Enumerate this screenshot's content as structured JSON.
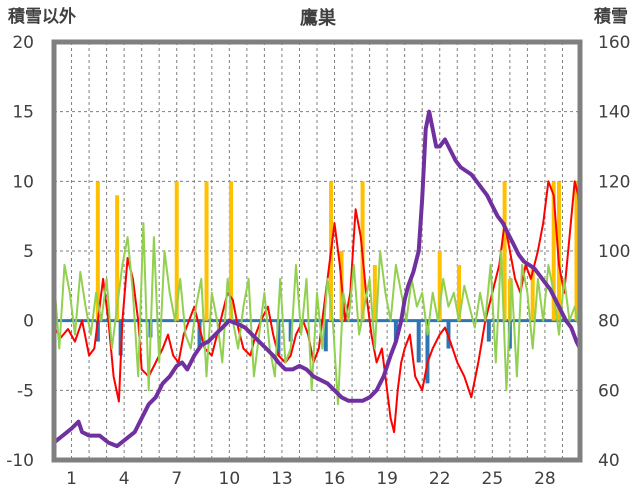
{
  "chart_data": {
    "type": "line",
    "title": "鷹巣",
    "ylabel_left": "積雪以外",
    "ylabel_right": "積雪",
    "ylim_left": [
      -10,
      20
    ],
    "ylim_right": [
      40,
      160
    ],
    "yticks_left": [
      "20",
      "15",
      "10",
      "5",
      "0",
      "-5",
      "-10"
    ],
    "yticks_right": [
      "160",
      "140",
      "120",
      "100",
      "80",
      "60",
      "40"
    ],
    "xlim": [
      0,
      30
    ],
    "xticks": [
      "1",
      "4",
      "7",
      "10",
      "13",
      "16",
      "19",
      "22",
      "25",
      "28"
    ],
    "xtick_values": [
      1,
      4,
      7,
      10,
      13,
      16,
      19,
      22,
      25,
      28
    ],
    "grid": true,
    "series": [
      {
        "axis": "left",
        "color": "#ffc000",
        "kind": "bar",
        "points": [
          [
            2.5,
            10
          ],
          [
            3.6,
            9
          ],
          [
            7.0,
            10
          ],
          [
            8.7,
            10
          ],
          [
            10.1,
            10
          ],
          [
            15.8,
            10
          ],
          [
            16.4,
            5
          ],
          [
            17.6,
            10
          ],
          [
            18.3,
            4
          ],
          [
            22.0,
            5
          ],
          [
            23.1,
            4
          ],
          [
            25.7,
            10
          ],
          [
            26.0,
            3
          ],
          [
            27.3,
            4
          ],
          [
            28.5,
            10
          ],
          [
            28.8,
            10
          ],
          [
            29.8,
            10
          ],
          [
            30.0,
            8
          ]
        ]
      },
      {
        "axis": "left",
        "color": "#2e75b6",
        "kind": "bar",
        "points": [
          [
            2.5,
            -1.5
          ],
          [
            3.8,
            -2.5
          ],
          [
            5.5,
            -1.2
          ],
          [
            8.3,
            -2
          ],
          [
            12.8,
            -2.5
          ],
          [
            13.5,
            -1.5
          ],
          [
            15.5,
            -2.2
          ],
          [
            19.5,
            -1.5
          ],
          [
            20.8,
            -3
          ],
          [
            21.3,
            -4.5
          ],
          [
            22.5,
            -2
          ],
          [
            24.8,
            -1.5
          ],
          [
            26.0,
            -2
          ]
        ]
      },
      {
        "axis": "left",
        "color": "#ff0000",
        "points": [
          [
            0,
            -0.5
          ],
          [
            0.4,
            -1.2
          ],
          [
            0.8,
            -0.6
          ],
          [
            1.2,
            -1.5
          ],
          [
            1.6,
            0
          ],
          [
            2.0,
            -2.5
          ],
          [
            2.3,
            -2
          ],
          [
            2.6,
            1
          ],
          [
            2.8,
            3
          ],
          [
            3.1,
            0
          ],
          [
            3.4,
            -4
          ],
          [
            3.7,
            -5.8
          ],
          [
            3.9,
            0
          ],
          [
            4.2,
            4.5
          ],
          [
            4.5,
            3
          ],
          [
            4.8,
            0
          ],
          [
            5.0,
            -3.5
          ],
          [
            5.4,
            -4
          ],
          [
            5.8,
            -3
          ],
          [
            6.2,
            -2
          ],
          [
            6.5,
            -1
          ],
          [
            6.8,
            -2.5
          ],
          [
            7.1,
            -3
          ],
          [
            7.4,
            -1
          ],
          [
            7.7,
            0
          ],
          [
            8.0,
            1
          ],
          [
            8.3,
            -0.5
          ],
          [
            8.6,
            -2
          ],
          [
            9.0,
            -2.5
          ],
          [
            9.3,
            -1
          ],
          [
            9.6,
            0.5
          ],
          [
            9.9,
            2
          ],
          [
            10.2,
            1.5
          ],
          [
            10.5,
            -0.5
          ],
          [
            10.8,
            -2
          ],
          [
            11.2,
            -2.5
          ],
          [
            11.5,
            -1
          ],
          [
            11.8,
            0
          ],
          [
            12.2,
            1
          ],
          [
            12.5,
            -1
          ],
          [
            12.8,
            -2.5
          ],
          [
            13.2,
            -3
          ],
          [
            13.5,
            -2.5
          ],
          [
            13.8,
            -1
          ],
          [
            14.2,
            0
          ],
          [
            14.5,
            -1
          ],
          [
            14.8,
            -3
          ],
          [
            15.1,
            -2
          ],
          [
            15.4,
            1
          ],
          [
            15.7,
            4
          ],
          [
            16.0,
            7
          ],
          [
            16.3,
            4
          ],
          [
            16.6,
            0
          ],
          [
            16.9,
            2
          ],
          [
            17.2,
            8
          ],
          [
            17.5,
            6
          ],
          [
            17.8,
            2
          ],
          [
            18.1,
            -1
          ],
          [
            18.4,
            -3
          ],
          [
            18.7,
            -2
          ],
          [
            19.0,
            -5
          ],
          [
            19.2,
            -7
          ],
          [
            19.4,
            -8
          ],
          [
            19.6,
            -5
          ],
          [
            19.8,
            -3
          ],
          [
            20.0,
            -2
          ],
          [
            20.3,
            -1
          ],
          [
            20.6,
            -4
          ],
          [
            21.0,
            -5
          ],
          [
            21.3,
            -3
          ],
          [
            21.6,
            -2
          ],
          [
            22.0,
            -1
          ],
          [
            22.3,
            -0.5
          ],
          [
            22.6,
            -1.5
          ],
          [
            23.0,
            -3
          ],
          [
            23.4,
            -4
          ],
          [
            23.8,
            -5.5
          ],
          [
            24.2,
            -3
          ],
          [
            24.6,
            0
          ],
          [
            25.0,
            2
          ],
          [
            25.4,
            4
          ],
          [
            25.7,
            7
          ],
          [
            26.0,
            5
          ],
          [
            26.3,
            3
          ],
          [
            26.6,
            2
          ],
          [
            26.9,
            4
          ],
          [
            27.2,
            3
          ],
          [
            27.6,
            5
          ],
          [
            27.9,
            7
          ],
          [
            28.2,
            10
          ],
          [
            28.5,
            9
          ],
          [
            28.8,
            4
          ],
          [
            29.1,
            2
          ],
          [
            29.4,
            6
          ],
          [
            29.7,
            10
          ],
          [
            29.9,
            9
          ],
          [
            30.0,
            5
          ]
        ]
      },
      {
        "axis": "left",
        "color": "#92d050",
        "points": [
          [
            0,
            3
          ],
          [
            0.3,
            -2
          ],
          [
            0.6,
            4
          ],
          [
            0.9,
            2
          ],
          [
            1.2,
            -1
          ],
          [
            1.5,
            3.5
          ],
          [
            1.8,
            1
          ],
          [
            2.1,
            -1
          ],
          [
            2.4,
            2
          ],
          [
            2.7,
            0
          ],
          [
            3.0,
            3
          ],
          [
            3.3,
            -2
          ],
          [
            3.6,
            1
          ],
          [
            3.9,
            4
          ],
          [
            4.2,
            6
          ],
          [
            4.5,
            2
          ],
          [
            4.8,
            -4
          ],
          [
            5.1,
            7
          ],
          [
            5.4,
            -5
          ],
          [
            5.7,
            6
          ],
          [
            6.0,
            -3
          ],
          [
            6.3,
            5
          ],
          [
            6.6,
            2
          ],
          [
            6.9,
            0
          ],
          [
            7.2,
            3
          ],
          [
            7.5,
            -1
          ],
          [
            7.8,
            -2
          ],
          [
            8.1,
            1
          ],
          [
            8.4,
            3
          ],
          [
            8.7,
            -4
          ],
          [
            9.0,
            2
          ],
          [
            9.3,
            0
          ],
          [
            9.6,
            -3
          ],
          [
            9.9,
            3
          ],
          [
            10.2,
            0
          ],
          [
            10.5,
            -2
          ],
          [
            10.8,
            1
          ],
          [
            11.1,
            3
          ],
          [
            11.4,
            -4
          ],
          [
            11.7,
            -1
          ],
          [
            12.0,
            2
          ],
          [
            12.3,
            -2
          ],
          [
            12.6,
            -4
          ],
          [
            12.9,
            3
          ],
          [
            13.2,
            -3
          ],
          [
            13.5,
            -2
          ],
          [
            13.8,
            4
          ],
          [
            14.1,
            -1
          ],
          [
            14.4,
            3
          ],
          [
            14.7,
            -5
          ],
          [
            15.0,
            2
          ],
          [
            15.3,
            -2
          ],
          [
            15.6,
            3
          ],
          [
            15.9,
            0
          ],
          [
            16.2,
            -6
          ],
          [
            16.5,
            2
          ],
          [
            16.8,
            0
          ],
          [
            17.1,
            4
          ],
          [
            17.4,
            -1
          ],
          [
            17.7,
            1
          ],
          [
            18.0,
            3
          ],
          [
            18.3,
            -2
          ],
          [
            18.6,
            5
          ],
          [
            18.9,
            2
          ],
          [
            19.2,
            0
          ],
          [
            19.5,
            4
          ],
          [
            19.8,
            2
          ],
          [
            20.1,
            0
          ],
          [
            20.4,
            3
          ],
          [
            20.7,
            1
          ],
          [
            21.0,
            2
          ],
          [
            21.3,
            -1
          ],
          [
            21.6,
            2
          ],
          [
            21.9,
            0
          ],
          [
            22.2,
            3
          ],
          [
            22.5,
            1
          ],
          [
            22.8,
            2
          ],
          [
            23.1,
            0
          ],
          [
            23.4,
            2.5
          ],
          [
            23.7,
            1
          ],
          [
            24.0,
            -0.5
          ],
          [
            24.3,
            2
          ],
          [
            24.6,
            0
          ],
          [
            24.9,
            4
          ],
          [
            25.2,
            -3
          ],
          [
            25.5,
            5
          ],
          [
            25.8,
            -5
          ],
          [
            26.1,
            3
          ],
          [
            26.4,
            -4
          ],
          [
            26.7,
            4
          ],
          [
            27.0,
            2
          ],
          [
            27.3,
            -2
          ],
          [
            27.6,
            3
          ],
          [
            27.9,
            0
          ],
          [
            28.2,
            4
          ],
          [
            28.5,
            2
          ],
          [
            28.8,
            -1
          ],
          [
            29.1,
            3
          ],
          [
            29.4,
            0
          ],
          [
            29.7,
            1
          ],
          [
            30.0,
            -1
          ]
        ]
      },
      {
        "axis": "right",
        "color": "#7030a0",
        "points": [
          [
            0,
            45
          ],
          [
            0.5,
            47
          ],
          [
            1.0,
            49
          ],
          [
            1.4,
            51
          ],
          [
            1.6,
            48
          ],
          [
            2.0,
            47
          ],
          [
            2.6,
            47
          ],
          [
            3.1,
            45
          ],
          [
            3.6,
            44
          ],
          [
            4.1,
            46
          ],
          [
            4.6,
            48
          ],
          [
            5.0,
            52
          ],
          [
            5.4,
            56
          ],
          [
            5.8,
            58
          ],
          [
            6.2,
            62
          ],
          [
            6.6,
            64
          ],
          [
            7.0,
            67
          ],
          [
            7.3,
            68
          ],
          [
            7.6,
            66
          ],
          [
            8.0,
            70
          ],
          [
            8.4,
            73
          ],
          [
            8.8,
            74
          ],
          [
            9.2,
            76
          ],
          [
            9.6,
            78
          ],
          [
            10.0,
            80
          ],
          [
            10.5,
            79
          ],
          [
            10.9,
            78
          ],
          [
            11.3,
            76
          ],
          [
            11.7,
            74
          ],
          [
            12.1,
            72
          ],
          [
            12.5,
            70
          ],
          [
            12.8,
            68
          ],
          [
            13.2,
            66
          ],
          [
            13.6,
            66
          ],
          [
            14.0,
            67
          ],
          [
            14.4,
            66
          ],
          [
            14.8,
            64
          ],
          [
            15.2,
            63
          ],
          [
            15.6,
            62
          ],
          [
            16.0,
            60
          ],
          [
            16.4,
            58
          ],
          [
            16.8,
            57
          ],
          [
            17.2,
            57
          ],
          [
            17.6,
            57
          ],
          [
            18.0,
            58
          ],
          [
            18.4,
            60
          ],
          [
            18.8,
            64
          ],
          [
            19.2,
            70
          ],
          [
            19.5,
            74
          ],
          [
            19.8,
            80
          ],
          [
            20.0,
            86
          ],
          [
            20.2,
            90
          ],
          [
            20.5,
            94
          ],
          [
            20.8,
            100
          ],
          [
            21.0,
            115
          ],
          [
            21.2,
            135
          ],
          [
            21.4,
            140
          ],
          [
            21.6,
            135
          ],
          [
            21.8,
            130
          ],
          [
            22.0,
            130
          ],
          [
            22.3,
            132
          ],
          [
            22.6,
            129
          ],
          [
            22.9,
            126
          ],
          [
            23.2,
            124
          ],
          [
            23.5,
            123
          ],
          [
            23.8,
            122
          ],
          [
            24.1,
            120
          ],
          [
            24.4,
            118
          ],
          [
            24.7,
            116
          ],
          [
            25.0,
            113
          ],
          [
            25.3,
            110
          ],
          [
            25.6,
            108
          ],
          [
            25.9,
            105
          ],
          [
            26.2,
            102
          ],
          [
            26.5,
            99
          ],
          [
            26.8,
            97
          ],
          [
            27.1,
            96
          ],
          [
            27.4,
            95
          ],
          [
            27.7,
            93
          ],
          [
            28.0,
            91
          ],
          [
            28.3,
            89
          ],
          [
            28.6,
            86
          ],
          [
            28.9,
            83
          ],
          [
            29.2,
            80
          ],
          [
            29.5,
            78
          ],
          [
            29.8,
            74
          ],
          [
            30.0,
            72
          ]
        ]
      }
    ]
  }
}
